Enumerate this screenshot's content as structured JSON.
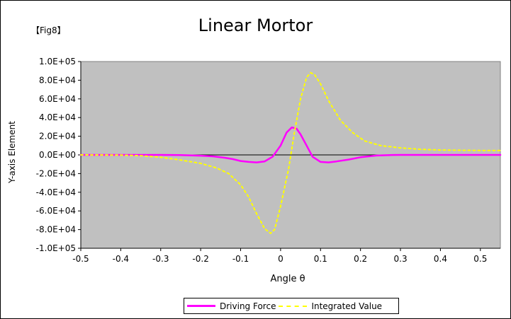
{
  "figure": {
    "fig_label": "【Fig8】"
  },
  "chart_data": {
    "type": "line",
    "title": "Linear Mortor",
    "xlabel": "Angle θ",
    "ylabel": "Y-axis Element",
    "xlim": [
      -0.5,
      0.55
    ],
    "ylim": [
      -100000,
      100000
    ],
    "x_ticks": [
      -0.5,
      -0.4,
      -0.3,
      -0.2,
      -0.1,
      0.0,
      0.1,
      0.2,
      0.3,
      0.4,
      0.5
    ],
    "x_tick_labels": [
      "-0.5",
      "-0.4",
      "-0.3",
      "-0.2",
      "-0.1",
      "0",
      "0.1",
      "0.2",
      "0.3",
      "0.4",
      "0.5"
    ],
    "y_ticks": [
      100000,
      80000,
      60000,
      40000,
      20000,
      0,
      -20000,
      -40000,
      -60000,
      -80000,
      -100000
    ],
    "y_tick_labels": [
      "1.0E+05",
      "8.0E+04",
      "6.0E+04",
      "4.0E+04",
      "2.0E+04",
      "0.0E+00",
      "-2.0E+04",
      "-4.0E+04",
      "-6.0E+04",
      "-8.0E+04",
      "-1.0E+05"
    ],
    "grid": false,
    "plot_background": "#c0c0c0",
    "legend_position": "bottom",
    "series": [
      {
        "name": "Driving Force",
        "color": "#ff00ff",
        "style": "solid",
        "points": [
          [
            -0.5,
            0
          ],
          [
            -0.4,
            0
          ],
          [
            -0.3,
            0
          ],
          [
            -0.25,
            -200
          ],
          [
            -0.2,
            -800
          ],
          [
            -0.17,
            -1500
          ],
          [
            -0.14,
            -3000
          ],
          [
            -0.12,
            -4500
          ],
          [
            -0.1,
            -6500
          ],
          [
            -0.08,
            -7500
          ],
          [
            -0.06,
            -8000
          ],
          [
            -0.04,
            -7000
          ],
          [
            -0.02,
            -2000
          ],
          [
            0.0,
            10000
          ],
          [
            0.015,
            24000
          ],
          [
            0.028,
            29500
          ],
          [
            0.04,
            28000
          ],
          [
            0.05,
            22000
          ],
          [
            0.065,
            10000
          ],
          [
            0.08,
            -2000
          ],
          [
            0.1,
            -7500
          ],
          [
            0.12,
            -8000
          ],
          [
            0.14,
            -7000
          ],
          [
            0.17,
            -5000
          ],
          [
            0.2,
            -2500
          ],
          [
            0.24,
            -700
          ],
          [
            0.28,
            -100
          ],
          [
            0.3,
            0
          ],
          [
            0.4,
            0
          ],
          [
            0.5,
            0
          ],
          [
            0.55,
            0
          ]
        ]
      },
      {
        "name": "Integrated Value",
        "color": "#ffff00",
        "style": "dashed",
        "points": [
          [
            -0.5,
            0
          ],
          [
            -0.4,
            -200
          ],
          [
            -0.35,
            -800
          ],
          [
            -0.3,
            -2500
          ],
          [
            -0.25,
            -5500
          ],
          [
            -0.2,
            -9000
          ],
          [
            -0.16,
            -14000
          ],
          [
            -0.13,
            -20000
          ],
          [
            -0.1,
            -32000
          ],
          [
            -0.08,
            -45000
          ],
          [
            -0.06,
            -63000
          ],
          [
            -0.04,
            -79000
          ],
          [
            -0.025,
            -84000
          ],
          [
            -0.015,
            -80000
          ],
          [
            0.0,
            -55000
          ],
          [
            0.02,
            -15000
          ],
          [
            0.035,
            25000
          ],
          [
            0.05,
            60000
          ],
          [
            0.065,
            83000
          ],
          [
            0.075,
            88000
          ],
          [
            0.085,
            86000
          ],
          [
            0.1,
            76000
          ],
          [
            0.12,
            58000
          ],
          [
            0.15,
            37000
          ],
          [
            0.18,
            24000
          ],
          [
            0.21,
            15000
          ],
          [
            0.25,
            10000
          ],
          [
            0.3,
            7500
          ],
          [
            0.35,
            6000
          ],
          [
            0.4,
            5200
          ],
          [
            0.45,
            5000
          ],
          [
            0.5,
            4800
          ],
          [
            0.55,
            4800
          ]
        ]
      }
    ]
  }
}
